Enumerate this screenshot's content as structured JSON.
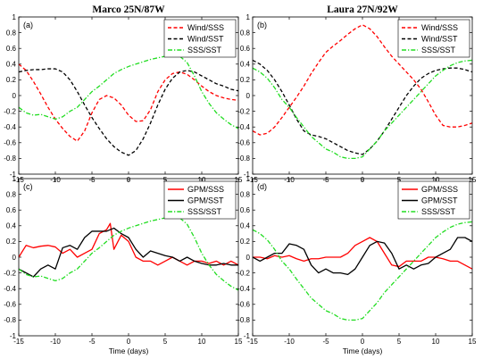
{
  "chart_data": [
    {
      "type": "line",
      "title": "Marco 25N/87W",
      "panel_label": "(a)",
      "xlabel": "",
      "ylabel": "",
      "xlim": [
        -15,
        15
      ],
      "ylim": [
        -1,
        1
      ],
      "xticks": [
        -15,
        -10,
        -5,
        0,
        5,
        10,
        15
      ],
      "yticks": [
        -1,
        -0.8,
        -0.6,
        -0.4,
        -0.2,
        0,
        0.2,
        0.4,
        0.6,
        0.8,
        1
      ],
      "legend_position": "top-right",
      "series": [
        {
          "name": "Wind/SSS",
          "color": "#ff0000",
          "dash": "dashed",
          "x": [
            -15,
            -14,
            -13,
            -12,
            -11,
            -10,
            -9,
            -8,
            -7,
            -6,
            -5,
            -4,
            -3,
            -2,
            -1,
            0,
            1,
            2,
            3,
            4,
            5,
            6,
            7,
            8,
            9,
            10,
            11,
            12,
            13,
            14,
            15
          ],
          "y": [
            0.4,
            0.32,
            0.18,
            0.02,
            -0.15,
            -0.3,
            -0.42,
            -0.52,
            -0.58,
            -0.45,
            -0.22,
            -0.05,
            0.0,
            -0.03,
            -0.12,
            -0.25,
            -0.33,
            -0.32,
            -0.18,
            0.05,
            0.2,
            0.28,
            0.3,
            0.27,
            0.2,
            0.12,
            0.05,
            0.0,
            -0.03,
            -0.05,
            -0.06
          ]
        },
        {
          "name": "Wind/SST",
          "color": "#000000",
          "dash": "dashed",
          "x": [
            -15,
            -14,
            -13,
            -12,
            -11,
            -10,
            -9,
            -8,
            -7,
            -6,
            -5,
            -4,
            -3,
            -2,
            -1,
            0,
            1,
            2,
            3,
            4,
            5,
            6,
            7,
            8,
            9,
            10,
            11,
            12,
            13,
            14,
            15
          ],
          "y": [
            0.3,
            0.32,
            0.33,
            0.33,
            0.34,
            0.34,
            0.3,
            0.2,
            0.05,
            -0.12,
            -0.28,
            -0.42,
            -0.55,
            -0.65,
            -0.72,
            -0.76,
            -0.7,
            -0.55,
            -0.35,
            -0.12,
            0.08,
            0.22,
            0.3,
            0.32,
            0.3,
            0.25,
            0.2,
            0.15,
            0.12,
            0.08,
            0.06
          ]
        },
        {
          "name": "SSS/SST",
          "color": "#22dd22",
          "dash": "dashdot",
          "x": [
            -15,
            -14,
            -13,
            -12,
            -11,
            -10,
            -9,
            -8,
            -7,
            -6,
            -5,
            -4,
            -3,
            -2,
            -1,
            0,
            1,
            2,
            3,
            4,
            5,
            6,
            7,
            8,
            9,
            10,
            11,
            12,
            13,
            14,
            15
          ],
          "y": [
            -0.15,
            -0.22,
            -0.25,
            -0.24,
            -0.27,
            -0.3,
            -0.27,
            -0.2,
            -0.15,
            -0.05,
            0.05,
            0.12,
            0.2,
            0.28,
            0.33,
            0.37,
            0.4,
            0.43,
            0.46,
            0.48,
            0.5,
            0.51,
            0.5,
            0.42,
            0.25,
            0.05,
            -0.1,
            -0.22,
            -0.3,
            -0.37,
            -0.42
          ]
        }
      ]
    },
    {
      "type": "line",
      "title": "Laura 27N/92W",
      "panel_label": "(b)",
      "xlabel": "",
      "ylabel": "",
      "xlim": [
        -15,
        15
      ],
      "ylim": [
        -1,
        1
      ],
      "xticks": [
        -15,
        -10,
        -5,
        0,
        5,
        10,
        15
      ],
      "yticks": [
        -1,
        -0.8,
        -0.6,
        -0.4,
        -0.2,
        0,
        0.2,
        0.4,
        0.6,
        0.8,
        1
      ],
      "legend_position": "top-right",
      "series": [
        {
          "name": "Wind/SSS",
          "color": "#ff0000",
          "dash": "dashed",
          "x": [
            -15,
            -14,
            -13,
            -12,
            -11,
            -10,
            -9,
            -8,
            -7,
            -6,
            -5,
            -4,
            -3,
            -2,
            -1,
            0,
            1,
            2,
            3,
            4,
            5,
            6,
            7,
            8,
            9,
            10,
            11,
            12,
            13,
            14,
            15
          ],
          "y": [
            -0.45,
            -0.5,
            -0.48,
            -0.4,
            -0.28,
            -0.15,
            -0.02,
            0.12,
            0.28,
            0.42,
            0.55,
            0.63,
            0.7,
            0.78,
            0.85,
            0.9,
            0.85,
            0.75,
            0.62,
            0.5,
            0.4,
            0.3,
            0.2,
            0.08,
            -0.08,
            -0.25,
            -0.38,
            -0.4,
            -0.4,
            -0.38,
            -0.35
          ]
        },
        {
          "name": "Wind/SST",
          "color": "#000000",
          "dash": "dashed",
          "x": [
            -15,
            -14,
            -13,
            -12,
            -11,
            -10,
            -9,
            -8,
            -7,
            -6,
            -5,
            -4,
            -3,
            -2,
            -1,
            0,
            1,
            2,
            3,
            4,
            5,
            6,
            7,
            8,
            9,
            10,
            11,
            12,
            13,
            14,
            15
          ],
          "y": [
            0.45,
            0.4,
            0.32,
            0.2,
            0.05,
            -0.12,
            -0.3,
            -0.45,
            -0.5,
            -0.52,
            -0.55,
            -0.6,
            -0.65,
            -0.7,
            -0.73,
            -0.75,
            -0.68,
            -0.58,
            -0.45,
            -0.3,
            -0.15,
            0.0,
            0.12,
            0.22,
            0.28,
            0.32,
            0.34,
            0.35,
            0.35,
            0.33,
            0.3
          ]
        },
        {
          "name": "SSS/SST",
          "color": "#22dd22",
          "dash": "dashdot",
          "x": [
            -15,
            -14,
            -13,
            -12,
            -11,
            -10,
            -9,
            -8,
            -7,
            -6,
            -5,
            -4,
            -3,
            -2,
            -1,
            0,
            1,
            2,
            3,
            4,
            5,
            6,
            7,
            8,
            9,
            10,
            11,
            12,
            13,
            14,
            15
          ],
          "y": [
            0.35,
            0.3,
            0.22,
            0.1,
            -0.05,
            -0.15,
            -0.28,
            -0.4,
            -0.52,
            -0.6,
            -0.68,
            -0.72,
            -0.78,
            -0.8,
            -0.8,
            -0.78,
            -0.68,
            -0.58,
            -0.45,
            -0.35,
            -0.25,
            -0.15,
            -0.05,
            0.05,
            0.15,
            0.25,
            0.32,
            0.38,
            0.42,
            0.44,
            0.45
          ]
        }
      ]
    },
    {
      "type": "line",
      "title": "",
      "panel_label": "(c)",
      "xlabel": "Time (days)",
      "ylabel": "",
      "xlim": [
        -15,
        15
      ],
      "ylim": [
        -1,
        1
      ],
      "xticks": [
        -15,
        -10,
        -5,
        0,
        5,
        10,
        15
      ],
      "yticks": [
        -1,
        -0.8,
        -0.6,
        -0.4,
        -0.2,
        0,
        0.2,
        0.4,
        0.6,
        0.8,
        1
      ],
      "legend_position": "top-right",
      "series": [
        {
          "name": "GPM/SSS",
          "color": "#ff0000",
          "dash": "solid",
          "x": [
            -15,
            -14,
            -13,
            -12,
            -11,
            -10,
            -9,
            -8,
            -7,
            -6,
            -5,
            -4,
            -3,
            -2.5,
            -2,
            -1,
            0,
            1,
            2,
            3,
            4,
            5,
            6,
            7,
            8,
            9,
            10,
            11,
            12,
            13,
            14,
            15
          ],
          "y": [
            0.0,
            0.15,
            0.12,
            0.14,
            0.15,
            0.13,
            0.05,
            0.1,
            0.0,
            0.05,
            0.1,
            0.3,
            0.35,
            0.43,
            0.1,
            0.28,
            0.2,
            0.0,
            -0.05,
            -0.05,
            -0.1,
            -0.05,
            0.0,
            -0.05,
            -0.1,
            -0.05,
            -0.05,
            -0.08,
            -0.05,
            -0.1,
            -0.05,
            -0.1
          ]
        },
        {
          "name": "GPM/SST",
          "color": "#000000",
          "dash": "solid",
          "x": [
            -15,
            -14,
            -13,
            -12,
            -11,
            -10,
            -9,
            -8,
            -7,
            -6,
            -5,
            -4,
            -3,
            -2,
            -1,
            0,
            1,
            2,
            3,
            4,
            5,
            6,
            7,
            8,
            9,
            10,
            11,
            12,
            13,
            14,
            15
          ],
          "y": [
            -0.15,
            -0.2,
            -0.25,
            -0.15,
            -0.1,
            -0.15,
            0.12,
            0.15,
            0.1,
            0.25,
            0.33,
            0.33,
            0.33,
            0.37,
            0.3,
            0.25,
            0.1,
            0.0,
            0.08,
            0.05,
            0.02,
            0.0,
            -0.05,
            0.0,
            -0.05,
            -0.08,
            -0.1,
            -0.1,
            -0.08,
            -0.1,
            -0.1
          ]
        },
        {
          "name": "SSS/SST",
          "color": "#22dd22",
          "dash": "dashdot",
          "x": [
            -15,
            -14,
            -13,
            -12,
            -11,
            -10,
            -9,
            -8,
            -7,
            -6,
            -5,
            -4,
            -3,
            -2,
            -1,
            0,
            1,
            2,
            3,
            4,
            5,
            6,
            7,
            8,
            9,
            10,
            11,
            12,
            13,
            14,
            15
          ],
          "y": [
            -0.15,
            -0.22,
            -0.25,
            -0.24,
            -0.27,
            -0.3,
            -0.27,
            -0.2,
            -0.15,
            -0.05,
            0.05,
            0.12,
            0.2,
            0.28,
            0.33,
            0.37,
            0.4,
            0.43,
            0.46,
            0.48,
            0.5,
            0.51,
            0.5,
            0.42,
            0.25,
            0.05,
            -0.1,
            -0.22,
            -0.3,
            -0.37,
            -0.42
          ]
        }
      ]
    },
    {
      "type": "line",
      "title": "",
      "panel_label": "(d)",
      "xlabel": "Time (days)",
      "ylabel": "",
      "xlim": [
        -15,
        15
      ],
      "ylim": [
        -1,
        1
      ],
      "xticks": [
        -15,
        -10,
        -5,
        0,
        5,
        10,
        15
      ],
      "yticks": [
        -1,
        -0.8,
        -0.6,
        -0.4,
        -0.2,
        0,
        0.2,
        0.4,
        0.6,
        0.8,
        1
      ],
      "legend_position": "top-right",
      "series": [
        {
          "name": "GPM/SSS",
          "color": "#ff0000",
          "dash": "solid",
          "x": [
            -15,
            -14,
            -13,
            -12,
            -11,
            -10,
            -9,
            -8,
            -7,
            -6,
            -5,
            -4,
            -3,
            -2,
            -1,
            0,
            1,
            2,
            3,
            4,
            5,
            6,
            7,
            8,
            9,
            10,
            11,
            12,
            13,
            14,
            15
          ],
          "y": [
            0.0,
            0.0,
            -0.02,
            0.02,
            0.0,
            0.02,
            -0.02,
            -0.05,
            -0.02,
            -0.02,
            0.0,
            0.0,
            0.0,
            0.05,
            0.15,
            0.2,
            0.25,
            0.2,
            0.05,
            -0.1,
            -0.12,
            -0.05,
            -0.05,
            -0.05,
            0.0,
            0.0,
            -0.02,
            -0.05,
            -0.05,
            -0.1,
            -0.15
          ]
        },
        {
          "name": "GPM/SST",
          "color": "#000000",
          "dash": "solid",
          "x": [
            -15,
            -14,
            -13,
            -12,
            -11,
            -10,
            -9,
            -8,
            -7,
            -6,
            -5,
            -4,
            -3,
            -2,
            -1,
            0,
            1,
            2,
            3,
            4,
            5,
            6,
            7,
            8,
            9,
            10,
            11,
            12,
            13,
            14,
            15
          ],
          "y": [
            0.0,
            -0.05,
            0.0,
            0.05,
            0.05,
            0.17,
            0.15,
            0.1,
            -0.1,
            -0.2,
            -0.15,
            -0.2,
            -0.2,
            -0.22,
            -0.15,
            0.0,
            0.15,
            0.2,
            0.18,
            0.05,
            -0.15,
            -0.1,
            -0.15,
            -0.1,
            -0.08,
            0.0,
            0.05,
            0.1,
            0.25,
            0.25,
            0.2
          ]
        },
        {
          "name": "SSS/SST",
          "color": "#22dd22",
          "dash": "dashdot",
          "x": [
            -15,
            -14,
            -13,
            -12,
            -11,
            -10,
            -9,
            -8,
            -7,
            -6,
            -5,
            -4,
            -3,
            -2,
            -1,
            0,
            1,
            2,
            3,
            4,
            5,
            6,
            7,
            8,
            9,
            10,
            11,
            12,
            13,
            14,
            15
          ],
          "y": [
            0.35,
            0.3,
            0.22,
            0.1,
            -0.05,
            -0.15,
            -0.28,
            -0.4,
            -0.52,
            -0.6,
            -0.68,
            -0.72,
            -0.78,
            -0.8,
            -0.8,
            -0.78,
            -0.68,
            -0.58,
            -0.45,
            -0.35,
            -0.25,
            -0.15,
            -0.05,
            0.05,
            0.15,
            0.25,
            0.32,
            0.38,
            0.42,
            0.44,
            0.45
          ]
        }
      ]
    }
  ]
}
